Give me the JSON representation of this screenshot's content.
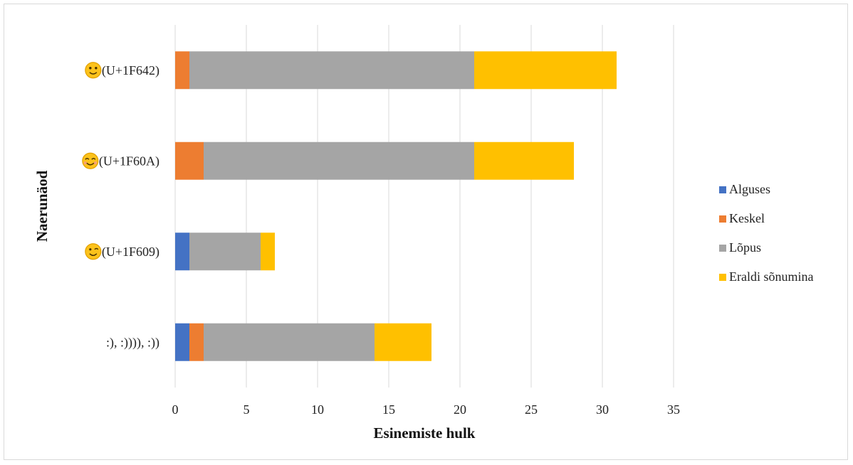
{
  "chart_data": {
    "type": "bar",
    "orientation": "horizontal",
    "stacked": true,
    "title": "",
    "xlabel": "Esinemiste hulk",
    "ylabel": "Naerunäod",
    "xlim": [
      0,
      35
    ],
    "xticks": [
      0,
      5,
      10,
      15,
      20,
      25,
      30,
      35
    ],
    "grid": true,
    "legend_position": "right",
    "categories": [
      {
        "label": ":), :)))), :))",
        "icon": ""
      },
      {
        "label": "(U+1F609)",
        "icon": "wink-emoji-icon"
      },
      {
        "label": "(U+1F60A)",
        "icon": "smiling-eyes-emoji-icon"
      },
      {
        "label": "(U+1F642)",
        "icon": "slight-smile-emoji-icon"
      }
    ],
    "series": [
      {
        "name": "Alguses",
        "color": "#4472c4",
        "values": [
          1,
          1,
          0,
          0
        ]
      },
      {
        "name": "Keskel",
        "color": "#ed7d31",
        "values": [
          1,
          0,
          2,
          1
        ]
      },
      {
        "name": "Lõpus",
        "color": "#a5a5a5",
        "values": [
          12,
          5,
          19,
          20
        ]
      },
      {
        "name": "Eraldi sõnumina",
        "color": "#ffc000",
        "values": [
          4,
          1,
          7,
          10
        ]
      }
    ]
  }
}
